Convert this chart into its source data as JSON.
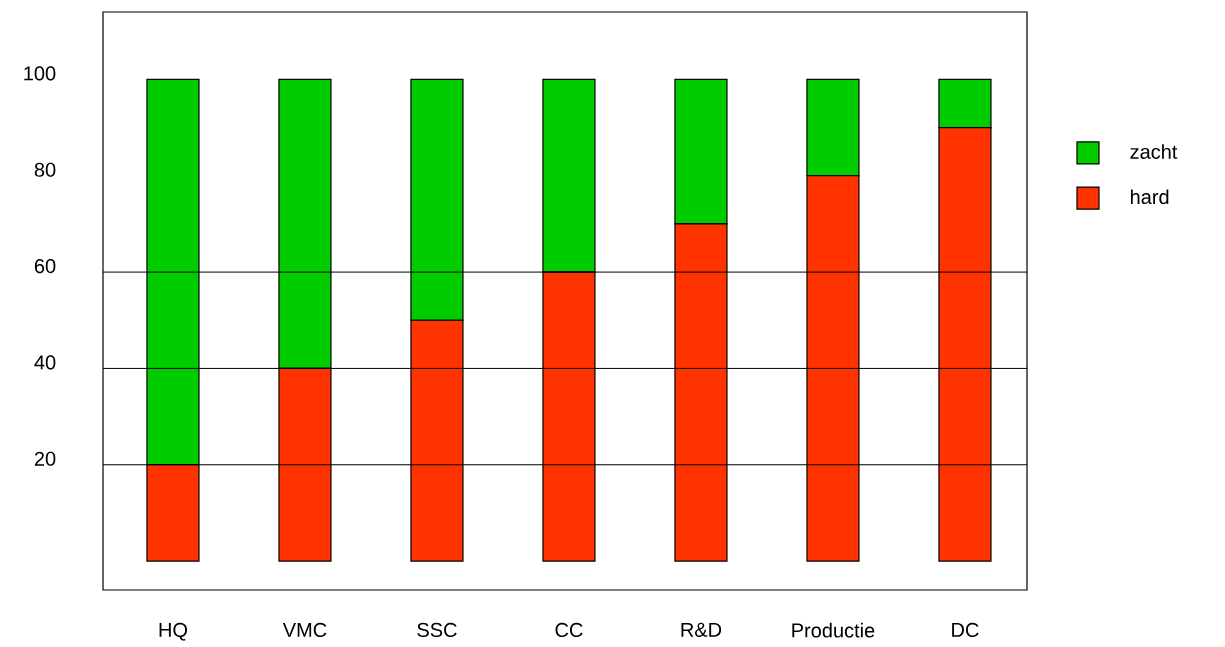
{
  "chart_data": {
    "type": "bar",
    "stacked": true,
    "categories": [
      "HQ",
      "VMC",
      "SSC",
      "CC",
      "R&D",
      "Productie",
      "DC"
    ],
    "series": [
      {
        "name": "hard",
        "color": "#ff3300",
        "values": [
          20,
          40,
          50,
          60,
          70,
          80,
          90
        ]
      },
      {
        "name": "zacht",
        "color": "#00cc00",
        "values": [
          80,
          60,
          50,
          40,
          30,
          20,
          10
        ]
      }
    ],
    "ylim": [
      -6,
      114
    ],
    "yticks": [
      20,
      40,
      60,
      80,
      100
    ],
    "ref_lines": [
      {
        "axis": "y",
        "value": 20
      },
      {
        "axis": "y",
        "value": 40
      },
      {
        "axis": "y",
        "value": 60
      }
    ],
    "legend": "right"
  }
}
